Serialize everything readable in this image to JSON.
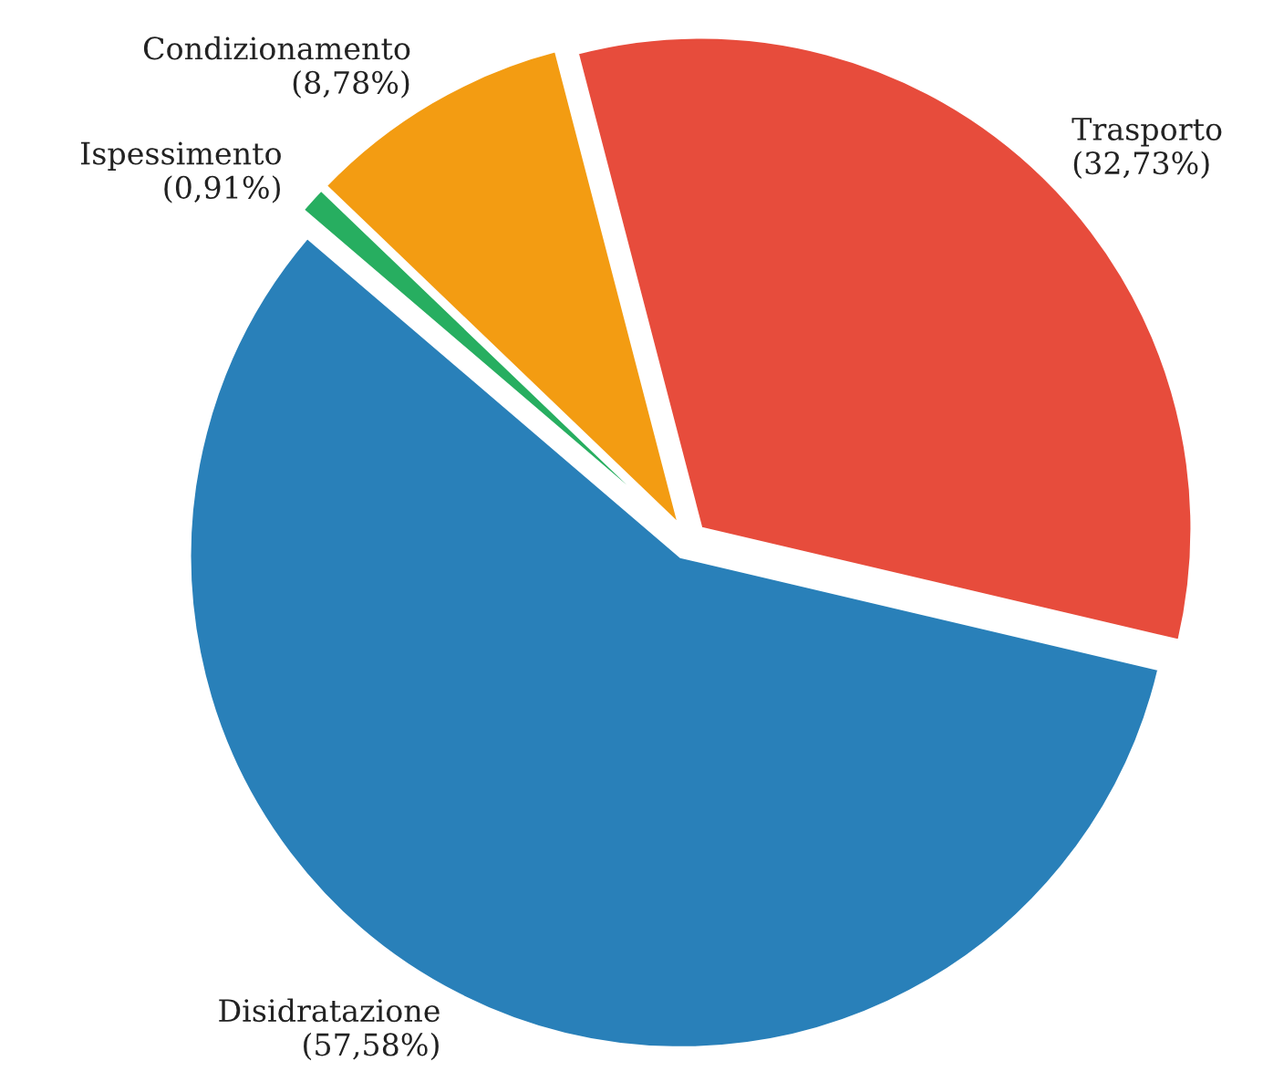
{
  "chart_data": {
    "type": "pie",
    "categories": [
      "Trasporto",
      "Disidratazione",
      "Ispessimento",
      "Condizionamento"
    ],
    "values": [
      32.73,
      57.58,
      0.91,
      8.78
    ],
    "value_labels": [
      "(32,73%)",
      "(57,58%)",
      "(0,91%)",
      "(8,78%)"
    ],
    "colors": [
      "#e74c3c",
      "#2980b9",
      "#27ae60",
      "#f39c12"
    ]
  }
}
